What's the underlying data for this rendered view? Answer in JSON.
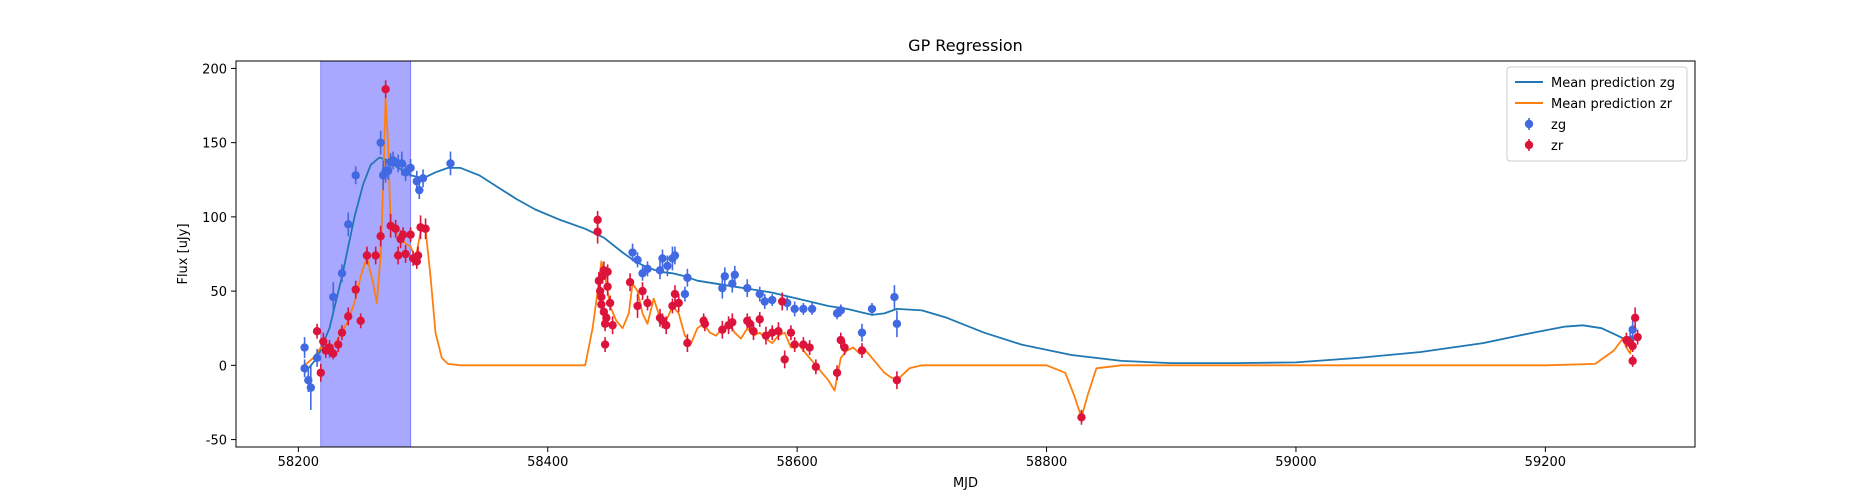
{
  "chart_data": {
    "type": "scatter",
    "title": "GP Regression",
    "xlabel": "MJD",
    "ylabel": "Flux [uJy]",
    "xlim": [
      58150,
      59320
    ],
    "ylim": [
      -55,
      205
    ],
    "xticks": [
      58200,
      58400,
      58600,
      58800,
      59000,
      59200
    ],
    "yticks": [
      -50,
      0,
      50,
      100,
      150,
      200
    ],
    "legend_placement": "top-right",
    "grid": false,
    "shaded_region": {
      "x_start": 58218,
      "x_end": 58290,
      "color": "#a8a8ff"
    },
    "series": [
      {
        "name": "Mean prediction zg",
        "kind": "line",
        "color": "#1f77b4",
        "x": [
          58205,
          58215,
          58225,
          58235,
          58245,
          58252,
          58258,
          58265,
          58272,
          58280,
          58290,
          58300,
          58310,
          58320,
          58330,
          58345,
          58360,
          58375,
          58390,
          58410,
          58430,
          58445,
          58460,
          58470,
          58480,
          58490,
          58500,
          58510,
          58520,
          58535,
          58550,
          58565,
          58580,
          58595,
          58610,
          58625,
          58640,
          58650,
          58660,
          58670,
          58680,
          58700,
          58720,
          58750,
          58780,
          58820,
          58860,
          58900,
          58950,
          59000,
          59050,
          59100,
          59150,
          59190,
          59215,
          59230,
          59245,
          59258,
          59265,
          59270
        ],
        "y": [
          -5,
          5,
          25,
          60,
          100,
          122,
          135,
          140,
          138,
          133,
          128,
          126,
          130,
          133,
          133,
          128,
          120,
          112,
          105,
          98,
          92,
          86,
          76,
          70,
          66,
          63,
          62,
          60,
          57,
          55,
          53,
          51,
          49,
          46,
          43,
          40,
          38,
          36,
          34,
          35,
          38,
          37,
          32,
          22,
          14,
          7,
          3,
          1.5,
          1.5,
          2,
          5,
          9,
          15,
          22,
          26,
          27,
          25,
          20,
          17,
          20
        ]
      },
      {
        "name": "Mean prediction zr",
        "kind": "line",
        "color": "#ff7f0e",
        "x": [
          58205,
          58212,
          58218,
          58225,
          58232,
          58240,
          58246,
          58250,
          58255,
          58260,
          58263,
          58266,
          58268,
          58270,
          58272,
          58274,
          58278,
          58282,
          58286,
          58290,
          58294,
          58298,
          58302,
          58306,
          58310,
          58315,
          58320,
          58330,
          58350,
          58380,
          58410,
          58430,
          58436,
          58440,
          58443,
          58446,
          58450,
          58455,
          58460,
          58465,
          58468,
          58472,
          58476,
          58480,
          58485,
          58490,
          58495,
          58500,
          58505,
          58510,
          58515,
          58520,
          58525,
          58530,
          58535,
          58540,
          58545,
          58550,
          58555,
          58560,
          58565,
          58570,
          58575,
          58580,
          58585,
          58590,
          58595,
          58600,
          58605,
          58610,
          58615,
          58620,
          58625,
          58630,
          58635,
          58640,
          58645,
          58650,
          58655,
          58660,
          58665,
          58670,
          58675,
          58680,
          58690,
          58700,
          58750,
          58800,
          58815,
          58822,
          58828,
          58833,
          58840,
          58860,
          58900,
          59000,
          59100,
          59200,
          59240,
          59255,
          59262,
          59265,
          59268,
          59270
        ],
        "y": [
          0,
          5,
          12,
          10,
          18,
          30,
          45,
          60,
          73,
          55,
          42,
          75,
          120,
          180,
          150,
          95,
          90,
          85,
          82,
          80,
          72,
          90,
          92,
          60,
          22,
          5,
          1,
          0,
          0,
          0,
          0,
          0,
          25,
          50,
          70,
          60,
          40,
          30,
          25,
          35,
          55,
          50,
          35,
          28,
          45,
          32,
          30,
          40,
          35,
          20,
          15,
          25,
          28,
          22,
          20,
          25,
          28,
          22,
          18,
          25,
          20,
          22,
          18,
          15,
          20,
          22,
          12,
          15,
          10,
          5,
          0,
          -5,
          -10,
          -17,
          5,
          10,
          12,
          8,
          10,
          5,
          0,
          -5,
          -8,
          -10,
          -2,
          0,
          0,
          0,
          -5,
          -20,
          -35,
          -20,
          -2,
          0,
          0,
          0,
          0,
          0,
          1,
          10,
          18,
          12,
          8,
          18
        ]
      },
      {
        "name": "zg",
        "kind": "points",
        "color": "#4169e1",
        "points": [
          [
            58205,
            12,
            7
          ],
          [
            58205,
            -2,
            6
          ],
          [
            58208,
            -10,
            8
          ],
          [
            58210,
            -15,
            15
          ],
          [
            58215,
            5,
            6
          ],
          [
            58225,
            10,
            5
          ],
          [
            58228,
            46,
            10
          ],
          [
            58235,
            62,
            6
          ],
          [
            58240,
            95,
            8
          ],
          [
            58246,
            128,
            6
          ],
          [
            58255,
            74,
            5
          ],
          [
            58266,
            150,
            8
          ],
          [
            58268,
            128,
            10
          ],
          [
            58270,
            131,
            8
          ],
          [
            58272,
            131,
            6
          ],
          [
            58274,
            137,
            6
          ],
          [
            58276,
            138,
            6
          ],
          [
            58280,
            136,
            6
          ],
          [
            58283,
            136,
            8
          ],
          [
            58286,
            130,
            6
          ],
          [
            58290,
            133,
            6
          ],
          [
            58295,
            124,
            7
          ],
          [
            58297,
            118,
            6
          ],
          [
            58300,
            126,
            6
          ],
          [
            58322,
            136,
            8
          ],
          [
            58468,
            76,
            6
          ],
          [
            58472,
            71,
            5
          ],
          [
            58476,
            62,
            5
          ],
          [
            58480,
            65,
            5
          ],
          [
            58490,
            64,
            6
          ],
          [
            58492,
            72,
            6
          ],
          [
            58496,
            67,
            7
          ],
          [
            58500,
            72,
            8
          ],
          [
            58502,
            74,
            6
          ],
          [
            58510,
            48,
            5
          ],
          [
            58512,
            59,
            6
          ],
          [
            58540,
            52,
            7
          ],
          [
            58542,
            60,
            6
          ],
          [
            58548,
            55,
            6
          ],
          [
            58550,
            61,
            6
          ],
          [
            58560,
            52,
            6
          ],
          [
            58570,
            48,
            5
          ],
          [
            58574,
            43,
            5
          ],
          [
            58580,
            44,
            4
          ],
          [
            58592,
            42,
            5
          ],
          [
            58598,
            38,
            5
          ],
          [
            58605,
            38,
            4
          ],
          [
            58612,
            38,
            4
          ],
          [
            58632,
            35,
            4
          ],
          [
            58635,
            37,
            4
          ],
          [
            58652,
            22,
            6
          ],
          [
            58660,
            38,
            4
          ],
          [
            58678,
            46,
            8
          ],
          [
            58680,
            28,
            9
          ],
          [
            59270,
            24,
            6
          ],
          [
            59268,
            17,
            5
          ]
        ]
      },
      {
        "name": "zr",
        "kind": "points",
        "color": "#dc143c",
        "points": [
          [
            58215,
            23,
            5
          ],
          [
            58218,
            -5,
            6
          ],
          [
            58220,
            16,
            6
          ],
          [
            58222,
            10,
            5
          ],
          [
            58225,
            12,
            5
          ],
          [
            58228,
            8,
            4
          ],
          [
            58232,
            14,
            5
          ],
          [
            58235,
            22,
            5
          ],
          [
            58240,
            33,
            6
          ],
          [
            58246,
            51,
            6
          ],
          [
            58250,
            30,
            5
          ],
          [
            58255,
            74,
            6
          ],
          [
            58262,
            74,
            6
          ],
          [
            58266,
            87,
            7
          ],
          [
            58270,
            186,
            6
          ],
          [
            58274,
            94,
            8
          ],
          [
            58278,
            92,
            6
          ],
          [
            58280,
            74,
            6
          ],
          [
            58282,
            85,
            6
          ],
          [
            58284,
            88,
            5
          ],
          [
            58286,
            75,
            6
          ],
          [
            58290,
            88,
            5
          ],
          [
            58292,
            72,
            5
          ],
          [
            58295,
            70,
            5
          ],
          [
            58296,
            74,
            6
          ],
          [
            58298,
            93,
            8
          ],
          [
            58302,
            92,
            7
          ],
          [
            58440,
            98,
            6
          ],
          [
            58440,
            90,
            8
          ],
          [
            58441,
            57,
            6
          ],
          [
            58442,
            50,
            6
          ],
          [
            58443,
            46,
            6
          ],
          [
            58443,
            41,
            5
          ],
          [
            58444,
            60,
            5
          ],
          [
            58445,
            64,
            6
          ],
          [
            58445,
            36,
            6
          ],
          [
            58446,
            28,
            5
          ],
          [
            58446,
            14,
            5
          ],
          [
            58447,
            32,
            6
          ],
          [
            58448,
            63,
            5
          ],
          [
            58448,
            53,
            6
          ],
          [
            58450,
            42,
            5
          ],
          [
            58452,
            27,
            6
          ],
          [
            58466,
            56,
            6
          ],
          [
            58472,
            40,
            8
          ],
          [
            58476,
            50,
            6
          ],
          [
            58480,
            42,
            5
          ],
          [
            58490,
            32,
            6
          ],
          [
            58492,
            30,
            5
          ],
          [
            58495,
            27,
            6
          ],
          [
            58500,
            40,
            5
          ],
          [
            58502,
            48,
            6
          ],
          [
            58505,
            42,
            6
          ],
          [
            58512,
            15,
            6
          ],
          [
            58525,
            30,
            5
          ],
          [
            58526,
            28,
            5
          ],
          [
            58540,
            24,
            6
          ],
          [
            58545,
            27,
            6
          ],
          [
            58548,
            29,
            6
          ],
          [
            58560,
            30,
            5
          ],
          [
            58562,
            28,
            5
          ],
          [
            58565,
            23,
            6
          ],
          [
            58570,
            31,
            5
          ],
          [
            58575,
            20,
            6
          ],
          [
            58580,
            22,
            5
          ],
          [
            58585,
            23,
            6
          ],
          [
            58588,
            43,
            6
          ],
          [
            58590,
            4,
            6
          ],
          [
            58595,
            22,
            5
          ],
          [
            58598,
            14,
            5
          ],
          [
            58605,
            14,
            5
          ],
          [
            58610,
            12,
            5
          ],
          [
            58615,
            -1,
            5
          ],
          [
            58632,
            -5,
            5
          ],
          [
            58635,
            17,
            5
          ],
          [
            58638,
            12,
            5
          ],
          [
            58652,
            10,
            5
          ],
          [
            58680,
            -10,
            6
          ],
          [
            58828,
            -35,
            5
          ],
          [
            59265,
            17,
            5
          ],
          [
            59268,
            15,
            4
          ],
          [
            59270,
            13,
            4
          ],
          [
            59270,
            3,
            4
          ],
          [
            59272,
            32,
            7
          ],
          [
            59274,
            19,
            5
          ]
        ]
      }
    ]
  }
}
